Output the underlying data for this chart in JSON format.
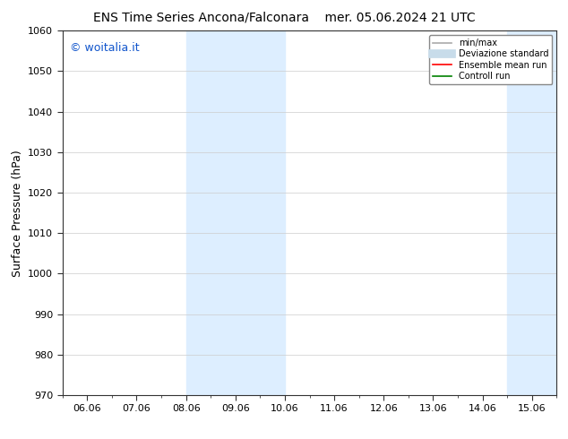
{
  "title_left": "ENS Time Series Ancona/Falconara",
  "title_right": "mer. 05.06.2024 21 UTC",
  "ylabel": "Surface Pressure (hPa)",
  "watermark": "© woitalia.it",
  "watermark_color": "#1155cc",
  "ylim": [
    970,
    1060
  ],
  "yticks": [
    970,
    980,
    990,
    1000,
    1010,
    1020,
    1030,
    1040,
    1050,
    1060
  ],
  "xtick_labels": [
    "06.06",
    "07.06",
    "08.06",
    "09.06",
    "10.06",
    "11.06",
    "12.06",
    "13.06",
    "14.06",
    "15.06"
  ],
  "xtick_positions": [
    0,
    1,
    2,
    3,
    4,
    5,
    6,
    7,
    8,
    9
  ],
  "xlim": [
    -0.5,
    9.5
  ],
  "shaded_bands": [
    {
      "x_start": 2.0,
      "x_end": 2.5,
      "color": "#ddeeff"
    },
    {
      "x_start": 2.5,
      "x_end": 3.5,
      "color": "#ddeeff"
    },
    {
      "x_start": 3.5,
      "x_end": 4.0,
      "color": "#ddeeff"
    },
    {
      "x_start": 8.5,
      "x_end": 9.0,
      "color": "#ddeeff"
    },
    {
      "x_start": 9.0,
      "x_end": 9.5,
      "color": "#ddeeff"
    }
  ],
  "legend_entries": [
    {
      "label": "min/max",
      "color": "#aaaaaa",
      "linewidth": 1.2,
      "linestyle": "-"
    },
    {
      "label": "Deviazione standard",
      "color": "#c8dcea",
      "linewidth": 7,
      "linestyle": "-"
    },
    {
      "label": "Ensemble mean run",
      "color": "red",
      "linewidth": 1.2,
      "linestyle": "-"
    },
    {
      "label": "Controll run",
      "color": "green",
      "linewidth": 1.2,
      "linestyle": "-"
    }
  ],
  "bg_color": "#ffffff",
  "plot_bg_color": "#ffffff",
  "grid_color": "#cccccc",
  "title_fontsize": 10,
  "tick_fontsize": 8,
  "ylabel_fontsize": 9,
  "watermark_fontsize": 9
}
